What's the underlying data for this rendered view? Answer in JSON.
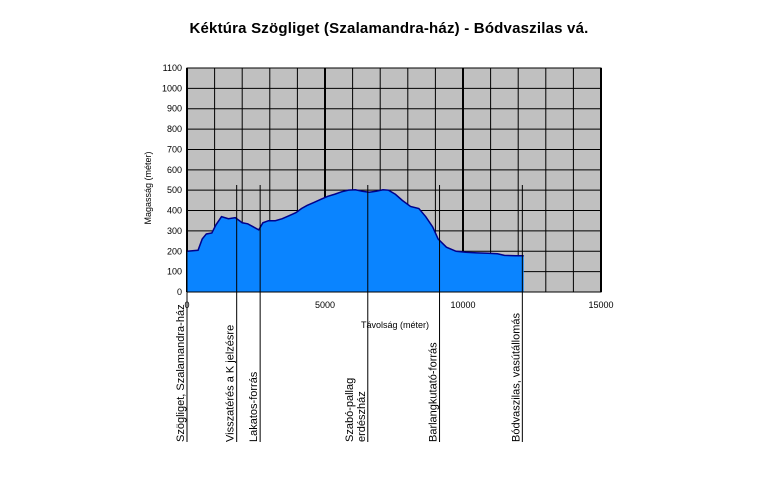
{
  "chart_data": {
    "type": "area",
    "title": "Kéktúra Szögliget (Szalamandra-ház) - Bódvaszilas vá.",
    "xlabel": "Távolság (méter)",
    "ylabel": "Magasság (méter)",
    "xlim": [
      0,
      15000
    ],
    "ylim": [
      0,
      1100
    ],
    "x_ticks": [
      0,
      5000,
      10000,
      15000
    ],
    "y_ticks": [
      0,
      100,
      200,
      300,
      400,
      500,
      600,
      700,
      800,
      900,
      1000,
      1100
    ],
    "grid": true,
    "fill_color": "#0a84ff",
    "line_color": "#00008b",
    "plot_bg": "#c0c0c0",
    "x": [
      0,
      400,
      550,
      700,
      900,
      1050,
      1250,
      1500,
      1750,
      2000,
      2200,
      2400,
      2600,
      2750,
      2950,
      3200,
      3450,
      3700,
      3950,
      4150,
      4350,
      4600,
      4850,
      5100,
      5350,
      5600,
      5850,
      6100,
      6350,
      6600,
      6850,
      7100,
      7300,
      7550,
      7800,
      8100,
      8400,
      8650,
      8900,
      9100,
      9400,
      9750,
      10100,
      10500,
      10900,
      11250,
      11500,
      11900,
      12200
    ],
    "y": [
      200,
      205,
      260,
      285,
      290,
      330,
      370,
      360,
      365,
      340,
      335,
      320,
      305,
      340,
      350,
      350,
      360,
      375,
      390,
      410,
      425,
      440,
      455,
      470,
      480,
      492,
      500,
      502,
      495,
      490,
      495,
      502,
      500,
      480,
      450,
      420,
      410,
      370,
      320,
      260,
      220,
      200,
      195,
      192,
      190,
      188,
      180,
      178,
      178
    ],
    "waypoints": [
      {
        "x": 0,
        "label": "Szögliget, Szalamandra-ház"
      },
      {
        "x": 1800,
        "label": "Visszatérés a K jelzésre"
      },
      {
        "x": 2650,
        "label": "Lakatos-forrás"
      },
      {
        "x": 6550,
        "label": "Szabó-pallag\nerdészház"
      },
      {
        "x": 9150,
        "label": "Barlangkutató-forrás"
      },
      {
        "x": 12150,
        "label": "Bódvaszilas, vasútállomás"
      }
    ]
  }
}
